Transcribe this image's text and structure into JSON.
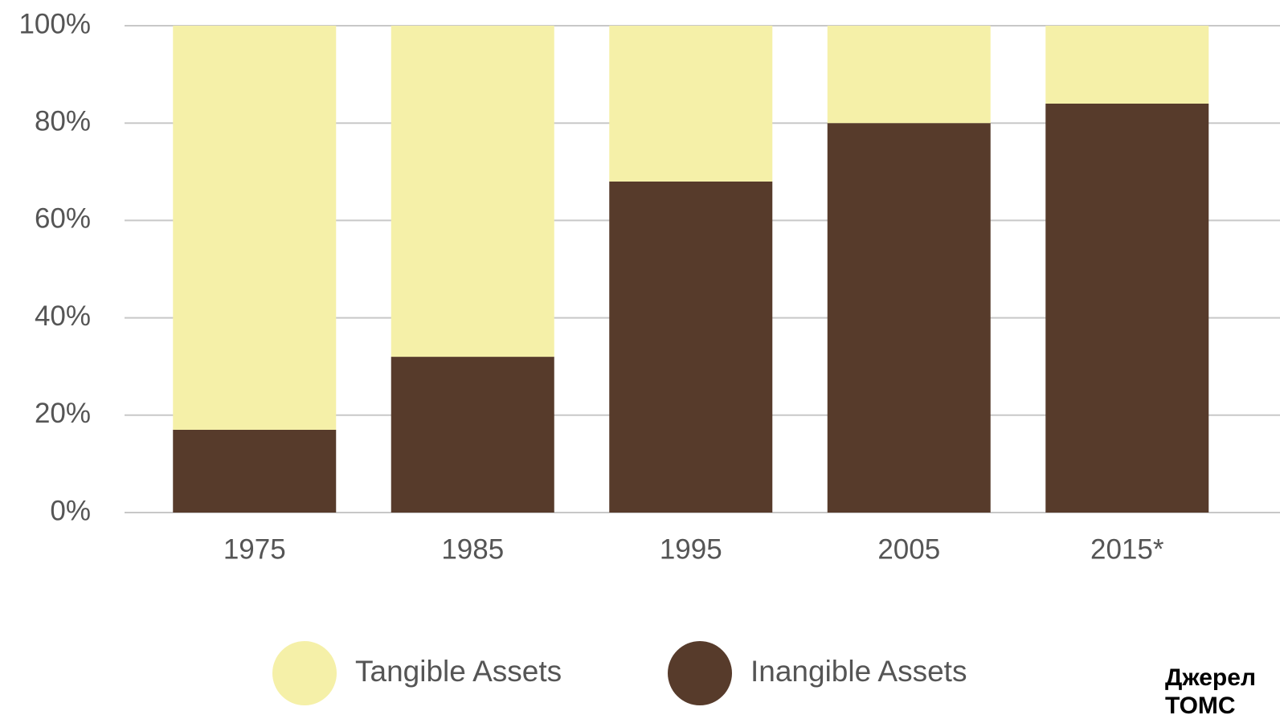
{
  "chart_data": {
    "type": "bar",
    "stacked": true,
    "categories": [
      "1975",
      "1985",
      "1995",
      "2005",
      "2015*"
    ],
    "series": [
      {
        "name": "Tangible Assets",
        "color": "#f5f0a8",
        "values": [
          83,
          68,
          32,
          20,
          16
        ]
      },
      {
        "name": "Inangible Assets",
        "color": "#573b2b",
        "values": [
          17,
          32,
          68,
          80,
          84
        ]
      }
    ],
    "ylim": [
      0,
      100
    ],
    "yticks": [
      {
        "value": 0,
        "label": "0%"
      },
      {
        "value": 20,
        "label": "20%"
      },
      {
        "value": 40,
        "label": "40%"
      },
      {
        "value": 60,
        "label": "60%"
      },
      {
        "value": 80,
        "label": "80%"
      },
      {
        "value": 100,
        "label": "100%"
      }
    ],
    "grid": true,
    "annotations": [
      "Джерел",
      "ТОМС"
    ]
  }
}
